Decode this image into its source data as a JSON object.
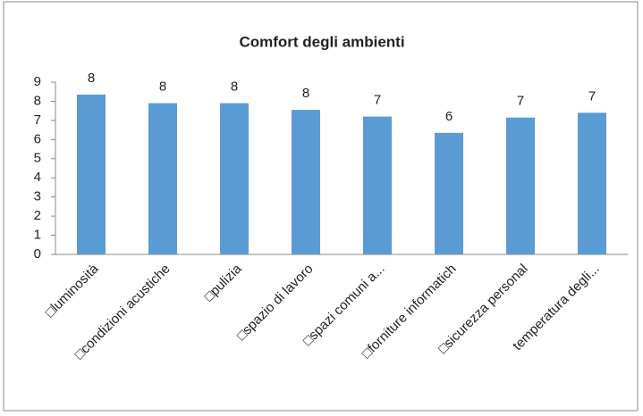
{
  "chart_data": {
    "type": "bar",
    "title": "Comfort degli ambienti",
    "categories": [
      "□luminosità",
      "□condizioni acustiche",
      "□pulizia",
      "□spazio di lavoro",
      "□spazi comuni a...",
      "□forniture informatich",
      "□sicurezza personal",
      "temperatura degli..."
    ],
    "values": [
      8.35,
      7.9,
      7.9,
      7.55,
      7.2,
      6.35,
      7.15,
      7.4
    ],
    "value_labels": [
      "8",
      "8",
      "8",
      "8",
      "7",
      "6",
      "7",
      "7"
    ],
    "color": "#5b9bd5",
    "ylim": [
      0,
      9
    ],
    "yticks": [
      0,
      1,
      2,
      3,
      4,
      5,
      6,
      7,
      8,
      9
    ],
    "grid": false
  }
}
